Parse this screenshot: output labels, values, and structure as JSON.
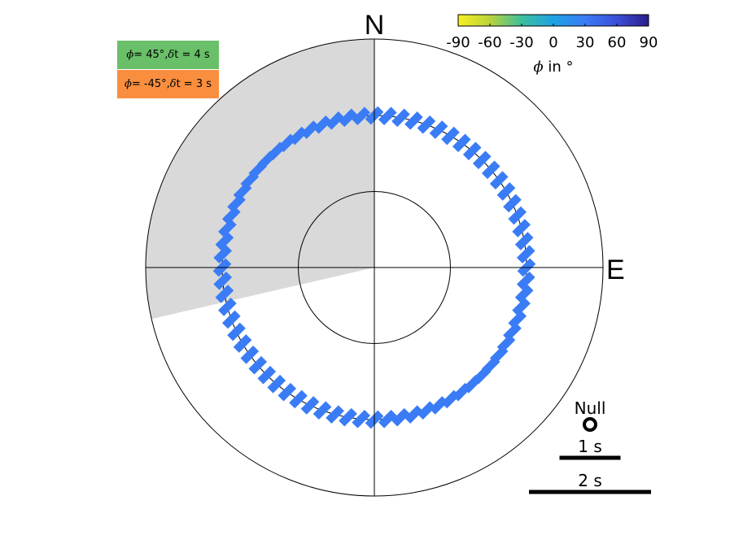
{
  "chart_data": {
    "type": "scatter",
    "subtype": "polar stereographic splitting plot",
    "compass": {
      "north_label": "N",
      "east_label": "E"
    },
    "colorbar": {
      "ticks": [
        "-90",
        "-60",
        "-30",
        "0",
        "30",
        "60",
        "90"
      ],
      "label_symbol": "ϕ",
      "label_suffix": " in °",
      "colors": [
        "#f9f021",
        "#b8d33b",
        "#3cbf9c",
        "#1ea2e4",
        "#3a7cf5",
        "#3b4fd8",
        "#2b1d8a"
      ]
    },
    "legend": [
      {
        "symbol": "ϕ",
        "text_a": " = 45°, ",
        "symbol2": "δ",
        "text_b": "t = 4 s",
        "color": "#6abf69"
      },
      {
        "symbol": "ϕ",
        "text_a": " = -45°, ",
        "symbol2": "δ",
        "text_b": "t = 3 s",
        "color": "#f98e3f"
      }
    ],
    "null_label": "Null",
    "scale_bars": [
      {
        "label": "1 s",
        "seconds": 1
      },
      {
        "label": "2 s",
        "seconds": 2
      }
    ],
    "reference_circles_deg": [
      10,
      20,
      30
    ],
    "shaded_backazimuth_range_deg": [
      257,
      360
    ],
    "series": [
      {
        "marker": "bar",
        "color": "#3a7cf5",
        "fast_axis_deg": 45,
        "incidence_deg": 20,
        "backazimuth_start": 0,
        "backazimuth_step": 5,
        "count": 72
      }
    ]
  }
}
